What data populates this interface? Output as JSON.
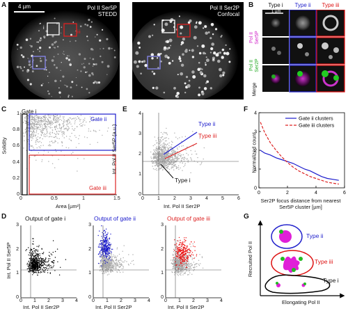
{
  "panels": {
    "A": "A",
    "B": "B",
    "C": "C",
    "D": "D",
    "E": "E",
    "F": "F",
    "G": "G"
  },
  "panel_a": {
    "scale_label": "4 µm",
    "left_title_1": "Pol II Ser5P",
    "left_title_2": "STEDD",
    "right_title_1": "Pol II Ser2P",
    "right_title_2": "Confocal",
    "box_i": "i",
    "box_ii": "ii",
    "box_iii": "iii"
  },
  "panel_b": {
    "scale_label": "1 µm",
    "col_i": "Type i",
    "col_ii": "Type ii",
    "col_iii": "Type iii",
    "row1_a": "Pol II",
    "row1_b": "Ser5P",
    "row2_a": "Pol II",
    "row2_b": "Ser2P",
    "row3": "Merge",
    "colors": {
      "ser5p": "#d020c8",
      "ser2p": "#22aa22",
      "ii": "#2222cc",
      "iii": "#dd1111"
    }
  },
  "panel_c": {
    "gate_i": "Gate i",
    "gate_ii": "Gate ii",
    "gate_iii": "Gate iii",
    "ylabel": "Solidity",
    "xlabel": "Area [µm²]",
    "yticks": [
      "0",
      "0.2",
      "0.4",
      "0.6",
      "0.8",
      "1"
    ],
    "xticks": [
      "0",
      "0.5",
      "1",
      "1.5"
    ]
  },
  "panel_e": {
    "type_ii": "Type ii",
    "type_iii": "Type iii",
    "type_i": "Type i",
    "ylabel": "Int. Pol II Ser5P (a.u.)",
    "xlabel": "Int. Pol II Ser2P",
    "yticks": [
      "0",
      "1",
      "2",
      "3",
      "4"
    ],
    "xticks": [
      "0",
      "1",
      "2",
      "3",
      "4",
      "5",
      "6"
    ]
  },
  "panel_d": {
    "title_i": "Output of gate i",
    "title_ii": "Output of gate ii",
    "title_iii": "Output of gate iii",
    "ylabel": "Int. Pol II Ser5P",
    "xlabel": "Int. Pol II Ser2P",
    "yticks": [
      "0",
      "1",
      "2",
      "3"
    ],
    "xticks": [
      "0",
      "1",
      "2",
      "3",
      "4"
    ]
  },
  "panel_g": {
    "type_ii": "Type ii",
    "type_iii": "Type iii",
    "type_i": "Type i",
    "ylabel": "Recruited Pol II",
    "xlabel": "Elongating Pol II"
  },
  "chart_data": [
    {
      "type": "line",
      "panel": "F",
      "ylabel": "Normalized count",
      "xlabel": "Ser2P focus distance from nearest Ser5P cluster [µm]",
      "xlim": [
        0,
        6
      ],
      "ylim": [
        0,
        4
      ],
      "xticks": [
        "0",
        "2",
        "4",
        "6"
      ],
      "yticks": [
        "0",
        "1",
        "2",
        "3",
        "4"
      ],
      "legend_position": "top-right",
      "series": [
        {
          "name": "Gate ii clusters",
          "color": "#1a1acc",
          "dash": "solid",
          "x": [
            0.1,
            0.4,
            0.8,
            1.2,
            1.6,
            2.0,
            2.4,
            2.8,
            3.2,
            3.6,
            4.0,
            4.4,
            4.8,
            5.2,
            5.6
          ],
          "y": [
            2.0,
            1.85,
            1.75,
            1.6,
            1.5,
            1.4,
            1.3,
            1.15,
            1.0,
            0.9,
            0.75,
            0.6,
            0.5,
            0.45,
            0.4
          ]
        },
        {
          "name": "Gate iii clusters",
          "color": "#dd2222",
          "dash": "dashed",
          "x": [
            0.1,
            0.4,
            0.8,
            1.2,
            1.6,
            2.0,
            2.4,
            2.8,
            3.2,
            3.6,
            4.0,
            4.4,
            4.8,
            5.2,
            5.6
          ],
          "y": [
            3.5,
            2.95,
            2.4,
            2.0,
            1.65,
            1.35,
            1.1,
            0.9,
            0.75,
            0.6,
            0.5,
            0.4,
            0.3,
            0.25,
            0.2
          ]
        }
      ]
    }
  ]
}
